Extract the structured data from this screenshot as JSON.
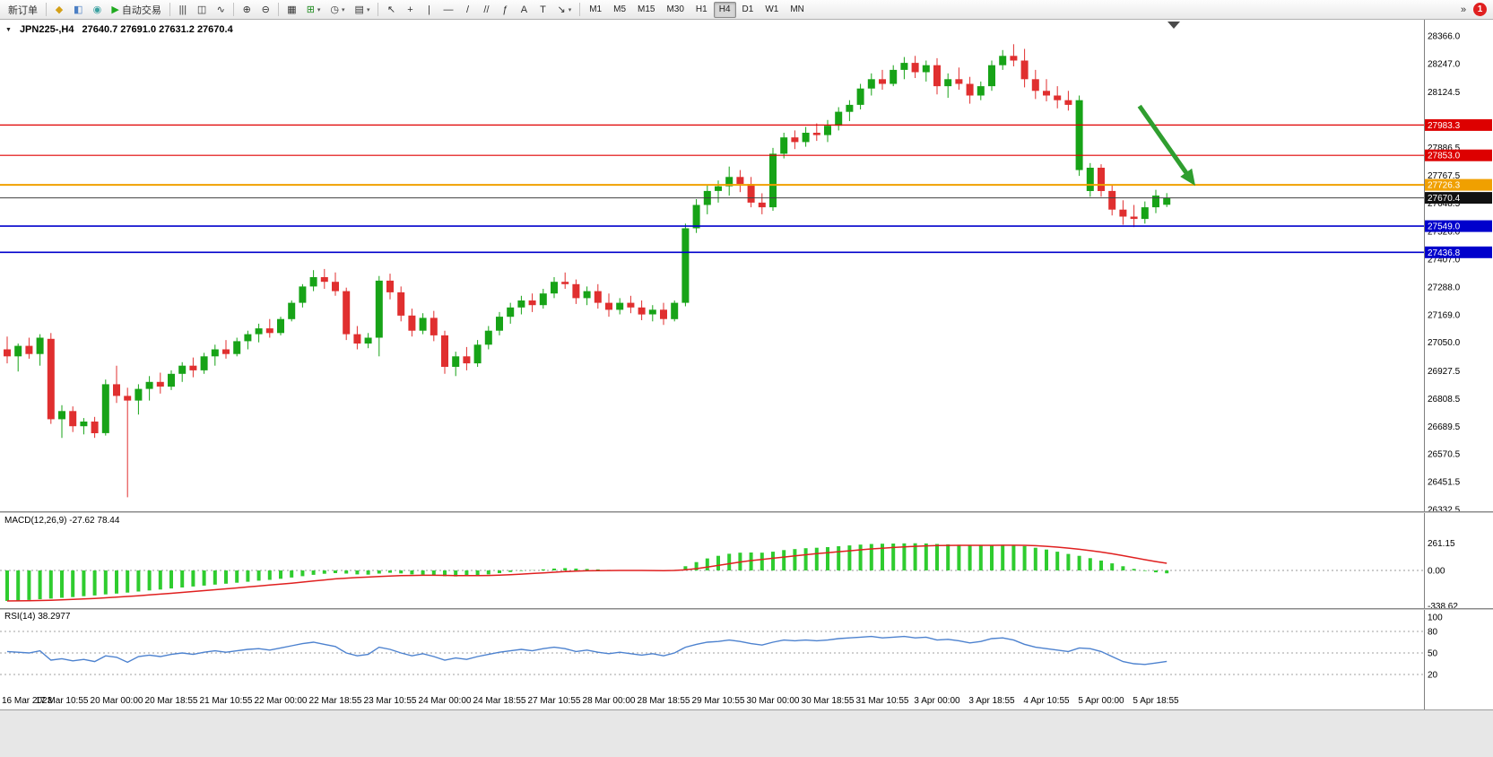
{
  "toolbar": {
    "items": [
      {
        "type": "button",
        "name": "new-order-button",
        "label": "新订单"
      },
      {
        "type": "sep"
      },
      {
        "type": "button",
        "name": "new-chart-icon",
        "glyph": "◆",
        "color": "#d4a017"
      },
      {
        "type": "button",
        "name": "profiles-icon",
        "glyph": "◧",
        "color": "#4c7fc4"
      },
      {
        "type": "button",
        "name": "market-watch-icon",
        "glyph": "◉",
        "color": "#3aa0a0"
      },
      {
        "type": "button",
        "name": "autotrade-button",
        "glyph": "▶",
        "color": "#1faa1f",
        "label": "自动交易"
      },
      {
        "type": "sep"
      },
      {
        "type": "button",
        "name": "bar-chart-icon",
        "glyph": "|||"
      },
      {
        "type": "button",
        "name": "candlestick-chart-icon",
        "glyph": "◫"
      },
      {
        "type": "button",
        "name": "line-chart-icon",
        "glyph": "∿"
      },
      {
        "type": "sep"
      },
      {
        "type": "button",
        "name": "zoom-in-icon",
        "glyph": "⊕"
      },
      {
        "type": "button",
        "name": "zoom-out-icon",
        "glyph": "⊖"
      },
      {
        "type": "sep"
      },
      {
        "type": "button",
        "name": "tile-windows-icon",
        "glyph": "▦"
      },
      {
        "type": "button",
        "name": "indicators-icon",
        "glyph": "⊞",
        "color": "#1f8a1f",
        "caret": true
      },
      {
        "type": "button",
        "name": "periods-icon",
        "glyph": "◷",
        "caret": true
      },
      {
        "type": "button",
        "name": "templates-icon",
        "glyph": "▤",
        "caret": true
      },
      {
        "type": "sep"
      },
      {
        "type": "button",
        "name": "cursor-icon",
        "glyph": "↖"
      },
      {
        "type": "button",
        "name": "crosshair-icon",
        "glyph": "+"
      },
      {
        "type": "button",
        "name": "vertical-line-icon",
        "glyph": "|"
      },
      {
        "type": "button",
        "name": "horizontal-line-icon",
        "glyph": "—"
      },
      {
        "type": "button",
        "name": "trendline-icon",
        "glyph": "/"
      },
      {
        "type": "button",
        "name": "channel-icon",
        "glyph": "//"
      },
      {
        "type": "button",
        "name": "fibonacci-icon",
        "glyph": "ƒ"
      },
      {
        "type": "button",
        "name": "text-icon",
        "glyph": "A"
      },
      {
        "type": "button",
        "name": "label-icon",
        "glyph": "T"
      },
      {
        "type": "button",
        "name": "arrows-icon",
        "glyph": "↘",
        "caret": true
      },
      {
        "type": "sep"
      },
      {
        "type": "tf",
        "name": "timeframe-m1",
        "label": "M1"
      },
      {
        "type": "tf",
        "name": "timeframe-m5",
        "label": "M5"
      },
      {
        "type": "tf",
        "name": "timeframe-m15",
        "label": "M15"
      },
      {
        "type": "tf",
        "name": "timeframe-m30",
        "label": "M30"
      },
      {
        "type": "tf",
        "name": "timeframe-h1",
        "label": "H1"
      },
      {
        "type": "tf",
        "name": "timeframe-h4",
        "label": "H4",
        "active": true
      },
      {
        "type": "tf",
        "name": "timeframe-d1",
        "label": "D1"
      },
      {
        "type": "tf",
        "name": "timeframe-w1",
        "label": "W1"
      },
      {
        "type": "tf",
        "name": "timeframe-mn",
        "label": "MN"
      },
      {
        "type": "spacer"
      },
      {
        "type": "button",
        "name": "toolbar-overflow-icon",
        "glyph": "»"
      },
      {
        "type": "badge",
        "name": "notification-badge",
        "label": "1"
      }
    ]
  },
  "colors": {
    "candle_up": "#17a317",
    "candle_down": "#e02f2f",
    "macd_histogram": "#2fcc2f",
    "macd_signal": "#e02020",
    "rsi_line": "#4d82cf",
    "arrow_green": "#2f9e2f"
  },
  "chart_data": [
    {
      "type": "candlestick",
      "title": "JPN225-,H4",
      "ohlc_text": "27640.7 27691.0 27631.2 27670.4",
      "last_candle": {
        "open": 27640.7,
        "high": 27691.0,
        "low": 27631.2,
        "close": 27670.4
      },
      "ylim": [
        26332.5,
        28366.0
      ],
      "y_ticks": [
        28366.0,
        28247.0,
        28124.5,
        27886.5,
        27767.5,
        27648.5,
        27526.0,
        27407.0,
        27288.0,
        27169.0,
        27050.0,
        26927.5,
        26808.5,
        26689.5,
        26570.5,
        26451.5,
        26332.5
      ],
      "x_labels": [
        "16 Mar 2023",
        "17 Mar 10:55",
        "20 Mar 00:00",
        "20 Mar 18:55",
        "21 Mar 10:55",
        "22 Mar 00:00",
        "22 Mar 18:55",
        "23 Mar 10:55",
        "24 Mar 00:00",
        "24 Mar 18:55",
        "27 Mar 10:55",
        "28 Mar 00:00",
        "28 Mar 18:55",
        "29 Mar 10:55",
        "30 Mar 00:00",
        "30 Mar 18:55",
        "31 Mar 10:55",
        "3 Apr 00:00",
        "3 Apr 18:55",
        "4 Apr 10:55",
        "5 Apr 00:00",
        "5 Apr 18:55"
      ],
      "bars_per_label": 5,
      "hlines": [
        {
          "price": 27983.3,
          "color": "#e00000",
          "width": 1.2,
          "badge_bg": "#dd0000"
        },
        {
          "price": 27853.0,
          "color": "#e00000",
          "width": 1.2,
          "badge_bg": "#dd0000"
        },
        {
          "price": 27726.3,
          "color": "#f0a000",
          "width": 2,
          "badge_bg": "#f0a000"
        },
        {
          "price": 27670.4,
          "color": "#404040",
          "width": 1,
          "badge_bg": "#111111",
          "current": true
        },
        {
          "price": 27549.0,
          "color": "#0000cc",
          "width": 1.6,
          "badge_bg": "#0000cc"
        },
        {
          "price": 27436.8,
          "color": "#0000cc",
          "width": 1.6,
          "badge_bg": "#0000cc"
        }
      ],
      "arrow": {
        "from_bar": 103.5,
        "from_price": 28065,
        "to_bar": 107.9,
        "to_price": 27770,
        "color": "#2f9e2f"
      },
      "candles": [
        [
          27020,
          27075,
          26960,
          26990
        ],
        [
          26990,
          27045,
          26925,
          27035
        ],
        [
          27035,
          27070,
          26980,
          27000
        ],
        [
          27000,
          27085,
          26950,
          27070
        ],
        [
          27065,
          27090,
          26700,
          26720
        ],
        [
          26720,
          26780,
          26640,
          26755
        ],
        [
          26755,
          26775,
          26665,
          26690
        ],
        [
          26690,
          26725,
          26655,
          26710
        ],
        [
          26710,
          26730,
          26640,
          26660
        ],
        [
          26660,
          26890,
          26650,
          26870
        ],
        [
          26870,
          26950,
          26790,
          26820
        ],
        [
          26820,
          26855,
          26385,
          26800
        ],
        [
          26800,
          26870,
          26740,
          26850
        ],
        [
          26850,
          26905,
          26800,
          26880
        ],
        [
          26880,
          26920,
          26830,
          26860
        ],
        [
          26860,
          26930,
          26845,
          26915
        ],
        [
          26915,
          26965,
          26880,
          26950
        ],
        [
          26950,
          26985,
          26900,
          26930
        ],
        [
          26930,
          27005,
          26915,
          26990
        ],
        [
          26990,
          27040,
          26950,
          27020
        ],
        [
          27020,
          27060,
          26980,
          27000
        ],
        [
          27000,
          27070,
          26990,
          27055
        ],
        [
          27055,
          27100,
          27020,
          27085
        ],
        [
          27085,
          27130,
          27050,
          27110
        ],
        [
          27110,
          27150,
          27070,
          27090
        ],
        [
          27090,
          27160,
          27080,
          27150
        ],
        [
          27150,
          27230,
          27140,
          27220
        ],
        [
          27220,
          27300,
          27200,
          27290
        ],
        [
          27290,
          27360,
          27270,
          27330
        ],
        [
          27330,
          27365,
          27280,
          27310
        ],
        [
          27310,
          27350,
          27250,
          27270
        ],
        [
          27270,
          27285,
          27060,
          27085
        ],
        [
          27085,
          27120,
          27020,
          27045
        ],
        [
          27045,
          27090,
          27025,
          27070
        ],
        [
          27070,
          27335,
          26990,
          27315
        ],
        [
          27315,
          27345,
          27235,
          27265
        ],
        [
          27265,
          27290,
          27140,
          27165
        ],
        [
          27165,
          27195,
          27075,
          27100
        ],
        [
          27100,
          27175,
          27085,
          27155
        ],
        [
          27155,
          27185,
          27055,
          27080
        ],
        [
          27080,
          27100,
          26915,
          26945
        ],
        [
          26945,
          27010,
          26905,
          26990
        ],
        [
          26990,
          27030,
          26930,
          26960
        ],
        [
          26960,
          27060,
          26945,
          27040
        ],
        [
          27040,
          27120,
          27020,
          27100
        ],
        [
          27100,
          27180,
          27080,
          27160
        ],
        [
          27160,
          27220,
          27130,
          27200
        ],
        [
          27200,
          27250,
          27170,
          27230
        ],
        [
          27230,
          27260,
          27180,
          27210
        ],
        [
          27210,
          27280,
          27195,
          27260
        ],
        [
          27260,
          27330,
          27240,
          27310
        ],
        [
          27310,
          27350,
          27280,
          27300
        ],
        [
          27300,
          27320,
          27215,
          27240
        ],
        [
          27240,
          27290,
          27210,
          27270
        ],
        [
          27270,
          27300,
          27195,
          27220
        ],
        [
          27220,
          27260,
          27160,
          27190
        ],
        [
          27190,
          27240,
          27170,
          27220
        ],
        [
          27220,
          27250,
          27175,
          27200
        ],
        [
          27200,
          27230,
          27145,
          27170
        ],
        [
          27170,
          27210,
          27140,
          27190
        ],
        [
          27190,
          27220,
          27125,
          27150
        ],
        [
          27150,
          27230,
          27140,
          27220
        ],
        [
          27220,
          27560,
          27205,
          27540
        ],
        [
          27540,
          27665,
          27520,
          27640
        ],
        [
          27640,
          27725,
          27600,
          27700
        ],
        [
          27700,
          27745,
          27650,
          27720
        ],
        [
          27720,
          27805,
          27680,
          27760
        ],
        [
          27760,
          27790,
          27695,
          27730
        ],
        [
          27730,
          27760,
          27630,
          27650
        ],
        [
          27650,
          27690,
          27600,
          27630
        ],
        [
          27630,
          27885,
          27615,
          27860
        ],
        [
          27860,
          27950,
          27840,
          27930
        ],
        [
          27930,
          27960,
          27880,
          27910
        ],
        [
          27910,
          27975,
          27890,
          27950
        ],
        [
          27950,
          27990,
          27915,
          27940
        ],
        [
          27940,
          28005,
          27910,
          27980
        ],
        [
          27980,
          28060,
          27960,
          28040
        ],
        [
          28040,
          28090,
          28000,
          28070
        ],
        [
          28070,
          28160,
          28050,
          28140
        ],
        [
          28140,
          28205,
          28110,
          28180
        ],
        [
          28180,
          28220,
          28135,
          28160
        ],
        [
          28160,
          28240,
          28150,
          28220
        ],
        [
          28220,
          28275,
          28180,
          28250
        ],
        [
          28250,
          28280,
          28185,
          28210
        ],
        [
          28210,
          28260,
          28170,
          28240
        ],
        [
          28240,
          28270,
          28115,
          28150
        ],
        [
          28150,
          28205,
          28100,
          28180
        ],
        [
          28180,
          28230,
          28135,
          28160
        ],
        [
          28160,
          28190,
          28075,
          28110
        ],
        [
          28110,
          28170,
          28090,
          28150
        ],
        [
          28150,
          28260,
          28130,
          28240
        ],
        [
          28240,
          28305,
          28220,
          28280
        ],
        [
          28280,
          28330,
          28235,
          28260
        ],
        [
          28260,
          28310,
          28145,
          28180
        ],
        [
          28180,
          28220,
          28095,
          28130
        ],
        [
          28130,
          28180,
          28085,
          28110
        ],
        [
          28110,
          28150,
          28055,
          28090
        ],
        [
          28090,
          28130,
          28045,
          28070
        ],
        [
          27790,
          28110,
          27765,
          28090
        ],
        [
          27700,
          27820,
          27675,
          27800
        ],
        [
          27800,
          27815,
          27675,
          27700
        ],
        [
          27700,
          27725,
          27595,
          27620
        ],
        [
          27620,
          27660,
          27555,
          27590
        ],
        [
          27590,
          27640,
          27545,
          27580
        ],
        [
          27580,
          27655,
          27560,
          27630
        ],
        [
          27630,
          27705,
          27605,
          27680
        ],
        [
          27640.7,
          27691.0,
          27631.2,
          27670.4
        ]
      ]
    },
    {
      "type": "macd_histogram",
      "label_full": "MACD(12,26,9) -27.62 78.44",
      "name": "MACD(12,26,9)",
      "current_main": -27.62,
      "current_signal": 78.44,
      "y_ticks": [
        261.15,
        0.0,
        -338.62
      ],
      "main": [
        -292,
        -288,
        -283,
        -276,
        -270,
        -262,
        -255,
        -247,
        -240,
        -230,
        -222,
        -212,
        -202,
        -192,
        -183,
        -173,
        -163,
        -154,
        -145,
        -136,
        -127,
        -118,
        -108,
        -98,
        -90,
        -80,
        -68,
        -55,
        -42,
        -32,
        -26,
        -30,
        -38,
        -40,
        -30,
        -22,
        -28,
        -38,
        -40,
        -45,
        -55,
        -58,
        -55,
        -48,
        -38,
        -26,
        -15,
        -5,
        2,
        10,
        18,
        22,
        18,
        15,
        10,
        5,
        3,
        2,
        -2,
        -3,
        -6,
        5,
        40,
        80,
        115,
        140,
        160,
        170,
        172,
        170,
        180,
        195,
        205,
        213,
        218,
        224,
        232,
        240,
        248,
        254,
        256,
        258,
        260,
        261,
        259,
        254,
        250,
        246,
        240,
        238,
        242,
        246,
        244,
        234,
        218,
        200,
        180,
        158,
        140,
        118,
        95,
        68,
        40,
        15,
        -5,
        -18,
        -27.62
      ]
    },
    {
      "type": "rsi_line",
      "label_full": "RSI(14) 38.2977",
      "name": "RSI(14)",
      "current": 38.2977,
      "levels": [
        80,
        50,
        20
      ],
      "y_ticks": [
        100,
        80,
        50,
        20
      ],
      "values": [
        52,
        51,
        50,
        53,
        40,
        42,
        39,
        41,
        38,
        46,
        44,
        37,
        45,
        47,
        45,
        48,
        50,
        48,
        51,
        53,
        51,
        53,
        55,
        56,
        54,
        57,
        60,
        63,
        65,
        62,
        59,
        50,
        46,
        48,
        58,
        55,
        50,
        46,
        49,
        45,
        40,
        43,
        41,
        45,
        48,
        51,
        53,
        55,
        53,
        56,
        58,
        56,
        52,
        54,
        51,
        49,
        51,
        49,
        47,
        49,
        46,
        50,
        58,
        62,
        65,
        66,
        68,
        66,
        63,
        61,
        65,
        68,
        67,
        68,
        67,
        68,
        70,
        71,
        72,
        73,
        71,
        72,
        73,
        71,
        72,
        68,
        69,
        67,
        64,
        66,
        70,
        71,
        68,
        62,
        58,
        56,
        54,
        52,
        57,
        56,
        52,
        45,
        38,
        35,
        34,
        36,
        38.3
      ]
    }
  ]
}
